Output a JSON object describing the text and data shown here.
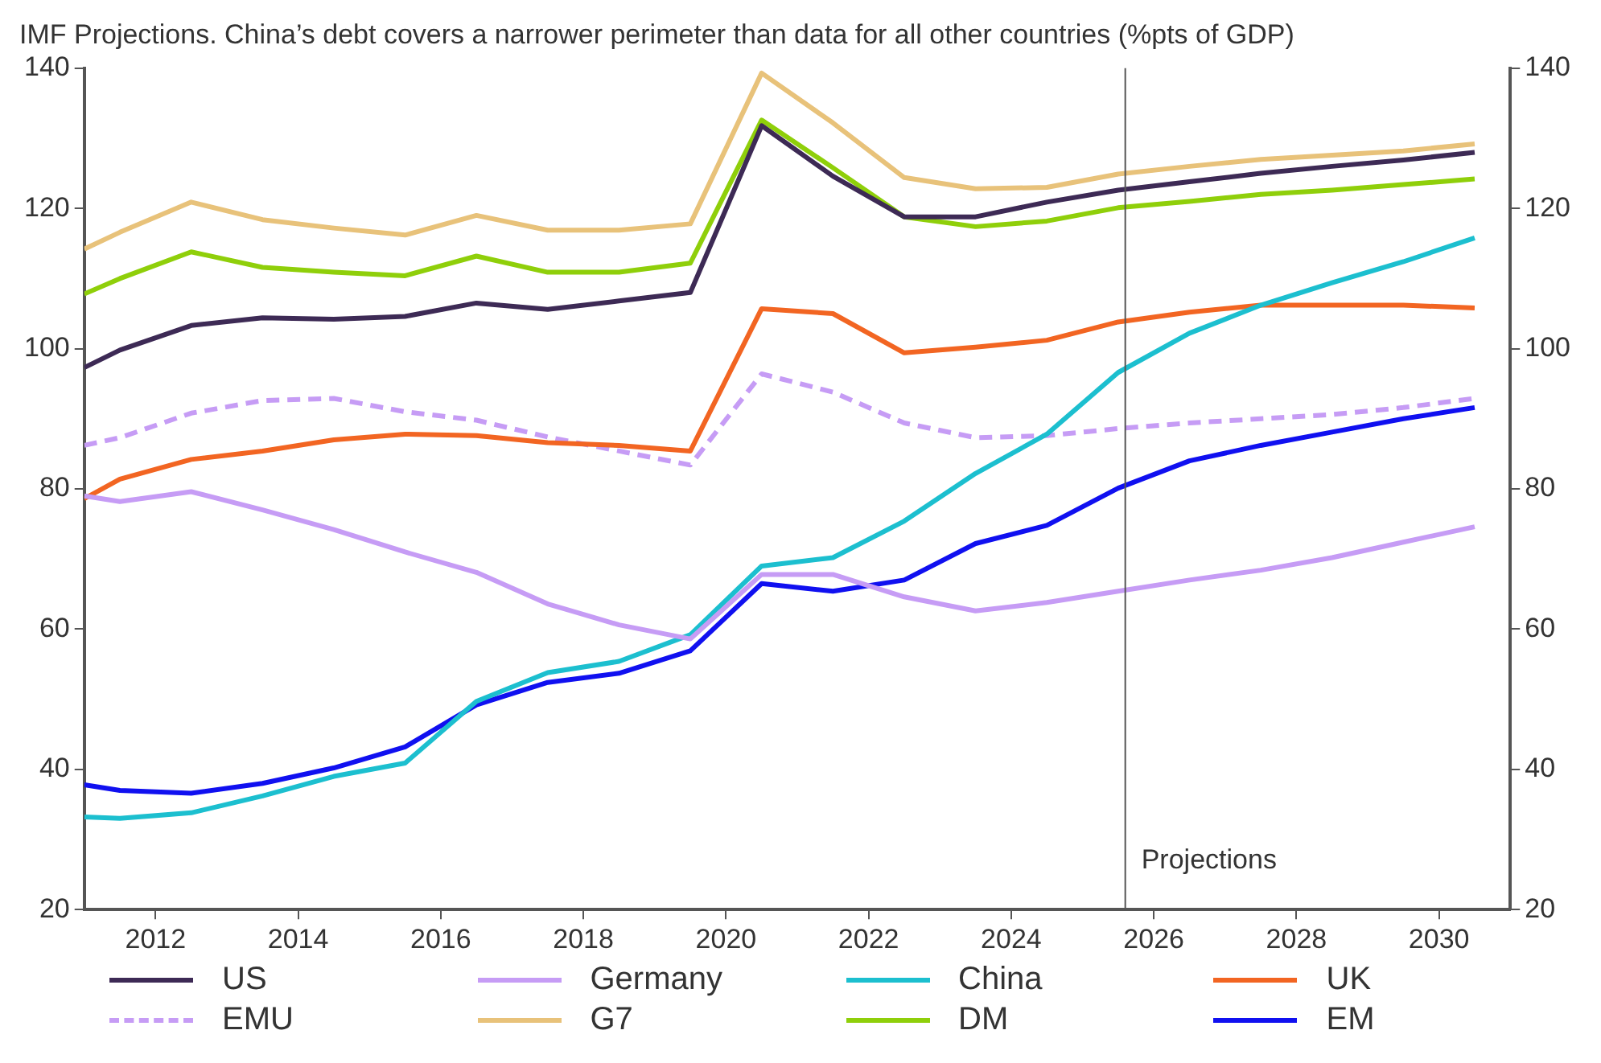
{
  "chart_data": {
    "type": "line",
    "title": "IMF Projections. China’s debt covers a narrower perimeter than data for all other countries (%pts of GDP)",
    "x": [
      2011,
      2011.5,
      2012.5,
      2013.5,
      2014.5,
      2015.5,
      2016.5,
      2017.5,
      2018.5,
      2019.5,
      2020.5,
      2021.5,
      2022.5,
      2023.5,
      2024.5,
      2025.5,
      2026.5,
      2027.5,
      2028.5,
      2029.5,
      2030.5
    ],
    "series": [
      {
        "name": "US",
        "color": "#3d2a55",
        "values": [
          97.3,
          99.8,
          103.3,
          104.4,
          104.2,
          104.6,
          106.5,
          105.6,
          106.8,
          108.0,
          131.8,
          124.6,
          118.8,
          118.8,
          120.9,
          122.6,
          123.8,
          125.0,
          126.0,
          126.9,
          128.0
        ]
      },
      {
        "name": "Germany",
        "color": "#c69cf5",
        "values": [
          79.0,
          78.2,
          79.6,
          77.0,
          74.2,
          71.0,
          68.1,
          63.6,
          60.6,
          58.6,
          67.8,
          67.8,
          64.6,
          62.6,
          63.8,
          65.4,
          67.0,
          68.4,
          70.2,
          72.4,
          74.6
        ]
      },
      {
        "name": "China",
        "color": "#1cbfcf",
        "values": [
          33.2,
          33.0,
          33.8,
          36.2,
          39.0,
          40.9,
          49.7,
          53.8,
          55.4,
          59.2,
          69.0,
          70.2,
          75.4,
          82.2,
          87.8,
          96.6,
          102.2,
          106.2,
          109.4,
          112.4,
          115.8
        ]
      },
      {
        "name": "UK",
        "color": "#f26522",
        "values": [
          78.6,
          81.4,
          84.2,
          85.4,
          87.0,
          87.8,
          87.6,
          86.6,
          86.2,
          85.4,
          105.7,
          105.0,
          99.4,
          100.2,
          101.2,
          103.8,
          105.2,
          106.2,
          106.2,
          106.2,
          105.8
        ]
      },
      {
        "name": "EMU",
        "color": "#c69cf5",
        "line_style": "dashed",
        "values": [
          86.2,
          87.3,
          90.8,
          92.6,
          92.9,
          91.0,
          89.8,
          87.4,
          85.4,
          83.4,
          96.4,
          93.8,
          89.4,
          87.3,
          87.6,
          88.6,
          89.4,
          90.0,
          90.6,
          91.6,
          92.9
        ]
      },
      {
        "name": "G7",
        "color": "#e8c27a",
        "values": [
          114.2,
          116.6,
          120.9,
          118.4,
          117.2,
          116.2,
          119.0,
          116.9,
          116.9,
          117.8,
          139.3,
          132.2,
          124.4,
          122.8,
          123.0,
          124.9,
          126.0,
          127.0,
          127.6,
          128.2,
          129.2
        ]
      },
      {
        "name": "DM",
        "color": "#8fcf0a",
        "values": [
          107.8,
          110.0,
          113.8,
          111.6,
          110.9,
          110.4,
          113.2,
          110.9,
          110.9,
          112.2,
          132.6,
          125.8,
          118.8,
          117.4,
          118.2,
          120.1,
          121.0,
          122.0,
          122.6,
          123.4,
          124.2
        ]
      },
      {
        "name": "EM",
        "color": "#1010f0",
        "values": [
          37.8,
          37.0,
          36.6,
          38.0,
          40.2,
          43.2,
          49.2,
          52.4,
          53.7,
          56.9,
          66.5,
          65.4,
          67.0,
          72.2,
          74.8,
          80.1,
          84.0,
          86.2,
          88.1,
          90.0,
          91.6
        ]
      }
    ],
    "xlim": [
      2011,
      2031
    ],
    "xticks": [
      2012,
      2014,
      2016,
      2018,
      2020,
      2022,
      2024,
      2026,
      2028,
      2030
    ],
    "ylim": [
      20,
      140
    ],
    "yticks": [
      20,
      40,
      60,
      80,
      100,
      120,
      140
    ],
    "y2lim": [
      20,
      140
    ],
    "y2ticks": [
      20,
      40,
      60,
      80,
      100,
      120,
      140
    ],
    "ref_lines": [
      {
        "axis": "x",
        "value": 2025.6,
        "label": "Projections",
        "color": "#555555"
      }
    ],
    "grid": false,
    "legend": "bottom"
  }
}
